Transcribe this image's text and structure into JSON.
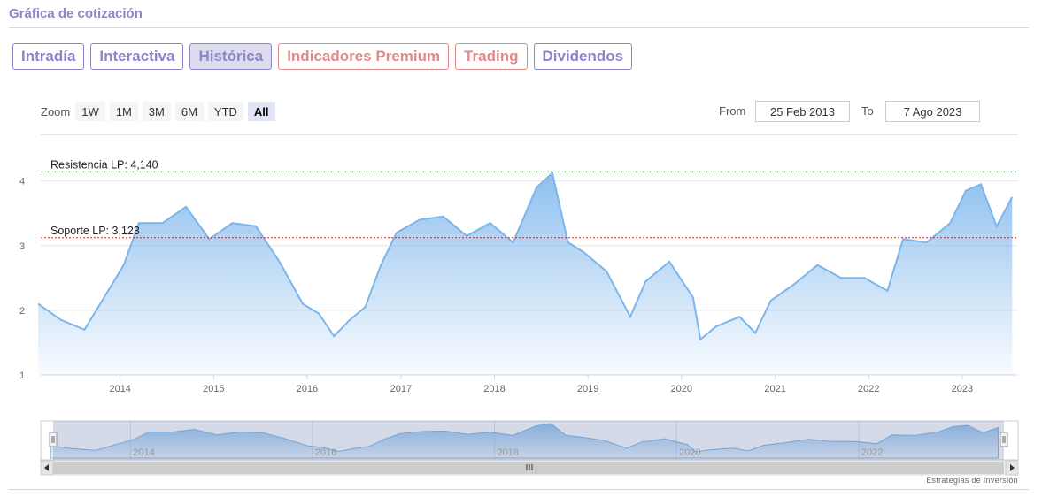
{
  "header": {
    "title": "Gráfica de cotización"
  },
  "tabs": [
    {
      "label": "Intradía",
      "active": false,
      "premium": false
    },
    {
      "label": "Interactiva",
      "active": false,
      "premium": false
    },
    {
      "label": "Histórica",
      "active": true,
      "premium": false
    },
    {
      "label": "Indicadores Premium",
      "active": false,
      "premium": true
    },
    {
      "label": "Trading",
      "active": false,
      "premium": true
    },
    {
      "label": "Dividendos",
      "active": false,
      "premium": false
    }
  ],
  "zoom": {
    "label": "Zoom",
    "buttons": [
      "1W",
      "1M",
      "3M",
      "6M",
      "YTD",
      "All"
    ],
    "selected": "All"
  },
  "range": {
    "from_label": "From",
    "from_value": "25 Feb 2013",
    "to_label": "To",
    "to_value": "7 Ago 2023"
  },
  "credit": "Estrategias de Inversión",
  "colors": {
    "accent": "#8b86c8",
    "premium": "#e08a8a",
    "line": "#7cb5ec",
    "resistance": "#2e7d32",
    "support": "#c62828"
  },
  "chart_data": {
    "type": "area",
    "x_start": "2013-02-25",
    "x_end": "2023-08-07",
    "ylim": [
      1,
      4.2
    ],
    "yticks": [
      "1",
      "2",
      "3",
      "4"
    ],
    "xticks": [
      "2014",
      "2015",
      "2016",
      "2017",
      "2018",
      "2019",
      "2020",
      "2021",
      "2022",
      "2023"
    ],
    "navigator_ticks": [
      "2014",
      "2016",
      "2018",
      "2020",
      "2022"
    ],
    "grid": true,
    "annotations": [
      {
        "label": "Resistencia LP: 4,140",
        "value": 4.14,
        "style": "green-dotted"
      },
      {
        "label": "Soporte LP: 3,123",
        "value": 3.123,
        "style": "red-dotted"
      }
    ],
    "series": [
      {
        "x": [
          "2013-02",
          "2013-05",
          "2013-08",
          "2013-11",
          "2014-01",
          "2014-03",
          "2014-06",
          "2014-09",
          "2014-12",
          "2015-03",
          "2015-06",
          "2015-09",
          "2015-12",
          "2016-02",
          "2016-04",
          "2016-06",
          "2016-08",
          "2016-10",
          "2016-12",
          "2017-03",
          "2017-06",
          "2017-09",
          "2017-12",
          "2018-03",
          "2018-06",
          "2018-08",
          "2018-10",
          "2018-12",
          "2019-03",
          "2019-06",
          "2019-08",
          "2019-11",
          "2020-02",
          "2020-03",
          "2020-05",
          "2020-08",
          "2020-10",
          "2020-12",
          "2021-03",
          "2021-06",
          "2021-09",
          "2021-12",
          "2022-03",
          "2022-05",
          "2022-08",
          "2022-11",
          "2023-01",
          "2023-03",
          "2023-05",
          "2023-07"
        ],
        "y": [
          2.1,
          1.85,
          1.7,
          2.3,
          2.7,
          3.35,
          3.35,
          3.6,
          3.1,
          3.35,
          3.3,
          2.75,
          2.1,
          1.95,
          1.6,
          1.85,
          2.05,
          2.7,
          3.2,
          3.4,
          3.45,
          3.15,
          3.35,
          3.05,
          3.9,
          4.12,
          3.05,
          2.9,
          2.6,
          1.9,
          2.45,
          2.75,
          2.2,
          1.55,
          1.75,
          1.9,
          1.65,
          2.15,
          2.4,
          2.7,
          2.5,
          2.5,
          2.3,
          3.1,
          3.05,
          3.35,
          3.85,
          3.95,
          3.3,
          3.75
        ]
      }
    ]
  }
}
